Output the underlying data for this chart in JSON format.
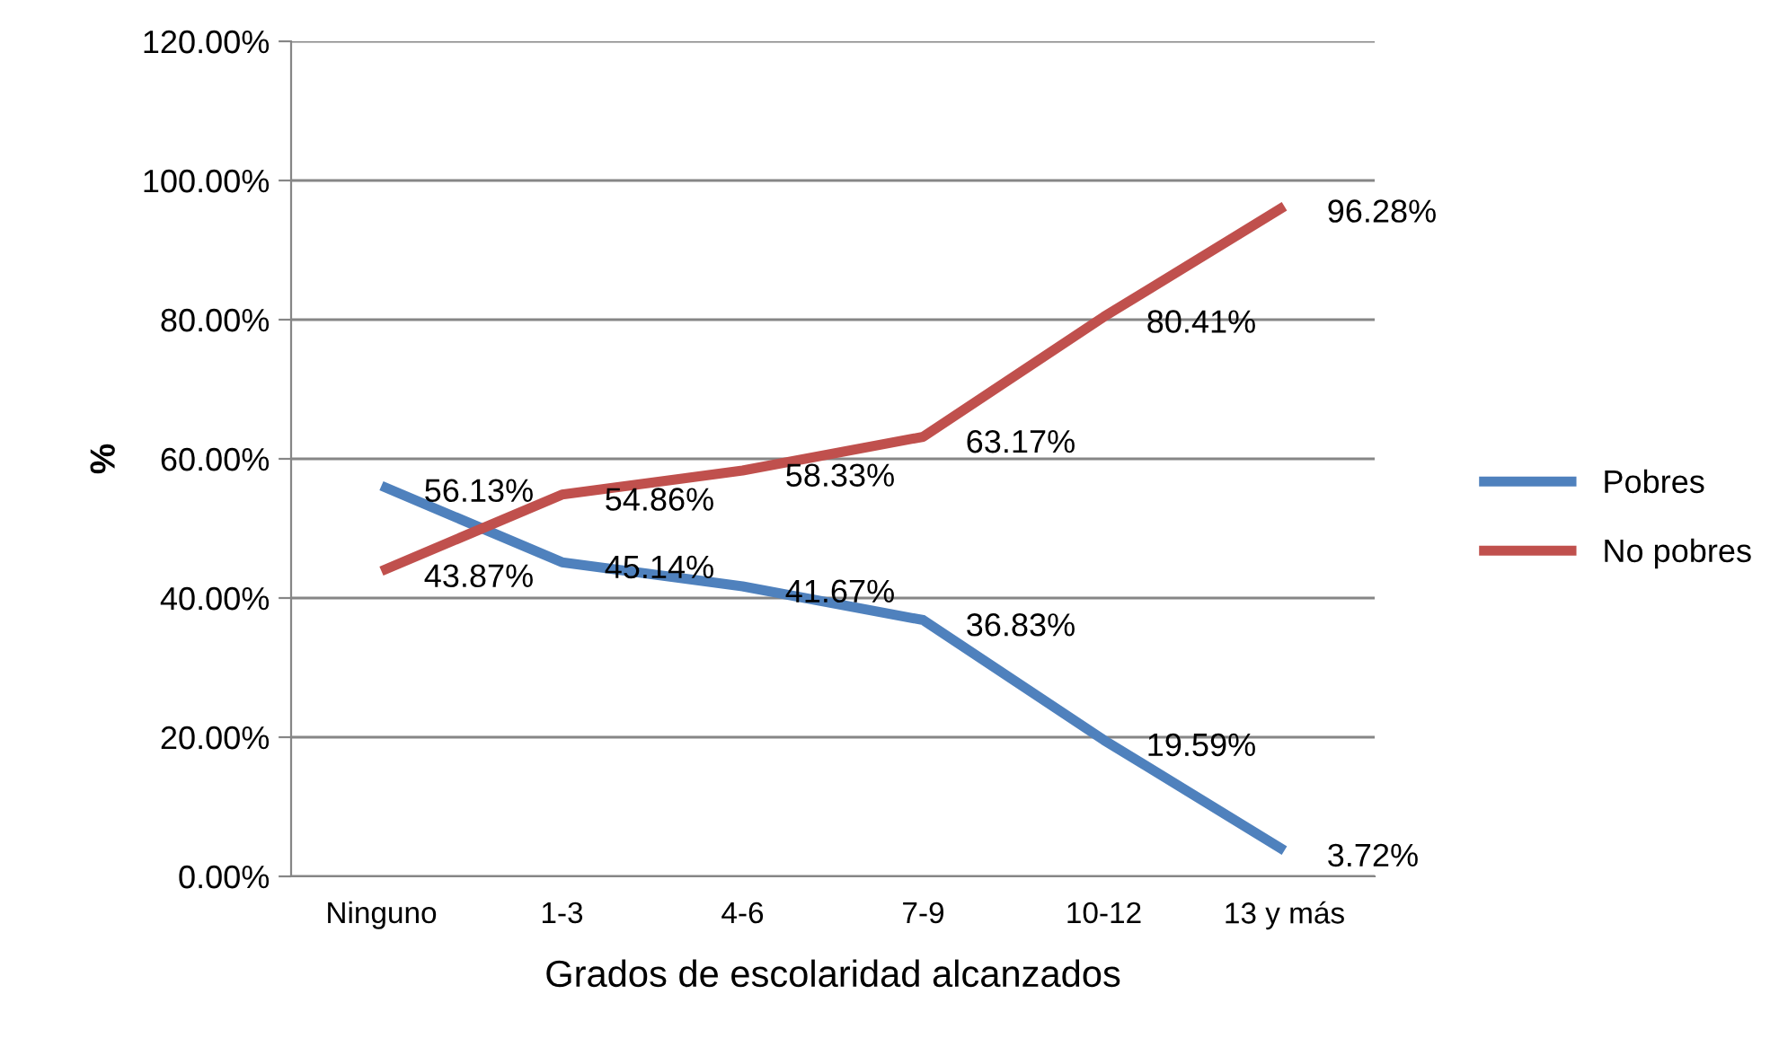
{
  "chart_data": {
    "type": "line",
    "xlabel": "Grados de escolaridad alcanzados",
    "ylabel": "%",
    "categories": [
      "Ninguno",
      "1-3",
      "4-6",
      "7-9",
      "10-12",
      "13 y más"
    ],
    "series": [
      {
        "name": "Pobres",
        "color": "#4f81bd",
        "values": [
          56.13,
          45.14,
          41.67,
          36.83,
          19.59,
          3.72
        ],
        "value_labels": [
          "56.13%",
          "45.14%",
          "41.67%",
          "36.83%",
          "19.59%",
          "3.72%"
        ]
      },
      {
        "name": "No pobres",
        "color": "#c0504d",
        "values": [
          43.87,
          54.86,
          58.33,
          63.17,
          80.41,
          96.28
        ],
        "value_labels": [
          "43.87%",
          "54.86%",
          "58.33%",
          "63.17%",
          "80.41%",
          "96.28%"
        ]
      }
    ],
    "ylim": [
      0,
      120
    ],
    "yticks": [
      {
        "value": 0,
        "label": "0.00%"
      },
      {
        "value": 20,
        "label": "20.00%"
      },
      {
        "value": 40,
        "label": "40.00%"
      },
      {
        "value": 60,
        "label": "60.00%"
      },
      {
        "value": 80,
        "label": "80.00%"
      },
      {
        "value": 100,
        "label": "100.00%"
      },
      {
        "value": 120,
        "label": "120.00%"
      }
    ],
    "grid": "y",
    "legend": "right",
    "marker": "none",
    "line_style": "solid"
  }
}
